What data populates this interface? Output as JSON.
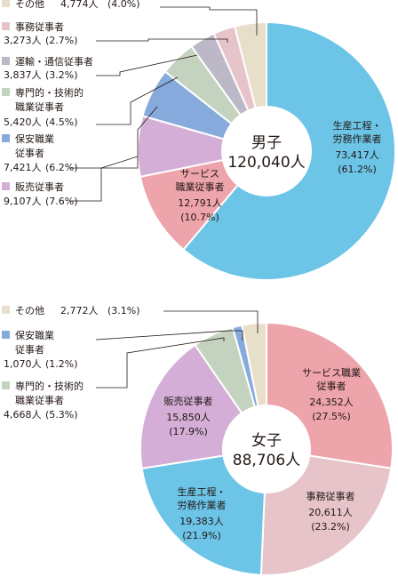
{
  "chart_data": [
    {
      "type": "pie",
      "center_label": [
        "男子",
        "120,040人"
      ],
      "total": 120040,
      "slices": [
        {
          "key": "production",
          "label": [
            "生産工程・",
            "労務作業者"
          ],
          "value": 73417,
          "value_text": "73,417人",
          "pct_text": "(61.2%)",
          "percent": 61.2,
          "color": "#6cc4e7",
          "label_style": "inside"
        },
        {
          "key": "service",
          "label": [
            "サービス",
            "職業従事者"
          ],
          "value": 12791,
          "value_text": "12,791人",
          "pct_text": "(10.7%)",
          "percent": 10.7,
          "color": "#eda4ab",
          "label_style": "inside"
        },
        {
          "key": "sales",
          "label": [
            "販売従事者"
          ],
          "value": 9107,
          "value_text": "9,107人",
          "pct_text": "(7.6%)",
          "percent": 7.6,
          "color": "#d4aed6",
          "label_style": "legend"
        },
        {
          "key": "security",
          "label": [
            "保安職業",
            "従事者"
          ],
          "value": 7421,
          "value_text": "7,421人",
          "pct_text": "(6.2%)",
          "percent": 6.2,
          "color": "#86aadc",
          "label_style": "legend"
        },
        {
          "key": "professional",
          "label": [
            "専門的・技術的",
            "職業従事者"
          ],
          "value": 5420,
          "value_text": "5,420人",
          "pct_text": "(4.5%)",
          "percent": 4.5,
          "color": "#c4d3bf",
          "label_style": "legend"
        },
        {
          "key": "transport",
          "label": [
            "運輸・通信従事者"
          ],
          "value": 3837,
          "value_text": "3,837人",
          "pct_text": "(3.2%)",
          "percent": 3.2,
          "color": "#bcb8c8",
          "label_style": "legend"
        },
        {
          "key": "clerical",
          "label": [
            "事務従事者"
          ],
          "value": 3273,
          "value_text": "3,273人",
          "pct_text": "(2.7%)",
          "percent": 2.7,
          "color": "#e6c4ca",
          "label_style": "legend"
        },
        {
          "key": "other",
          "label": [
            "その他"
          ],
          "value": 4774,
          "value_text": "4,774人",
          "pct_text": "(4.0%)",
          "percent": 4.0,
          "color": "#e8dfcb",
          "label_style": "legend"
        }
      ]
    },
    {
      "type": "pie",
      "center_label": [
        "女子",
        "88,706人"
      ],
      "total": 88706,
      "slices": [
        {
          "key": "service",
          "label": [
            "サービス職業",
            "従事者"
          ],
          "value": 24352,
          "value_text": "24,352人",
          "pct_text": "(27.5%)",
          "percent": 27.5,
          "color": "#eda4ab",
          "label_style": "inside"
        },
        {
          "key": "clerical",
          "label": [
            "事務従事者"
          ],
          "value": 20611,
          "value_text": "20,611人",
          "pct_text": "(23.2%)",
          "percent": 23.2,
          "color": "#e6c4ca",
          "label_style": "inside"
        },
        {
          "key": "production",
          "label": [
            "生産工程・",
            "労務作業者"
          ],
          "value": 19383,
          "value_text": "19,383人",
          "pct_text": "(21.9%)",
          "percent": 21.9,
          "color": "#6cc4e7",
          "label_style": "inside"
        },
        {
          "key": "sales",
          "label": [
            "販売従事者"
          ],
          "value": 15850,
          "value_text": "15,850人",
          "pct_text": "(17.9%)",
          "percent": 17.9,
          "color": "#d4aed6",
          "label_style": "inside"
        },
        {
          "key": "professional",
          "label": [
            "専門的・技術的",
            "職業従事者"
          ],
          "value": 4668,
          "value_text": "4,668人",
          "pct_text": "(5.3%)",
          "percent": 5.3,
          "color": "#c4d3bf",
          "label_style": "legend"
        },
        {
          "key": "security",
          "label": [
            "保安職業",
            "従事者"
          ],
          "value": 1070,
          "value_text": "1,070人",
          "pct_text": "(1.2%)",
          "percent": 1.2,
          "color": "#86aadc",
          "label_style": "legend"
        },
        {
          "key": "other",
          "label": [
            "その他"
          ],
          "value": 2772,
          "value_text": "2,772人",
          "pct_text": "(3.1%)",
          "percent": 3.1,
          "color": "#e8dfcb",
          "label_style": "legend"
        }
      ]
    }
  ]
}
